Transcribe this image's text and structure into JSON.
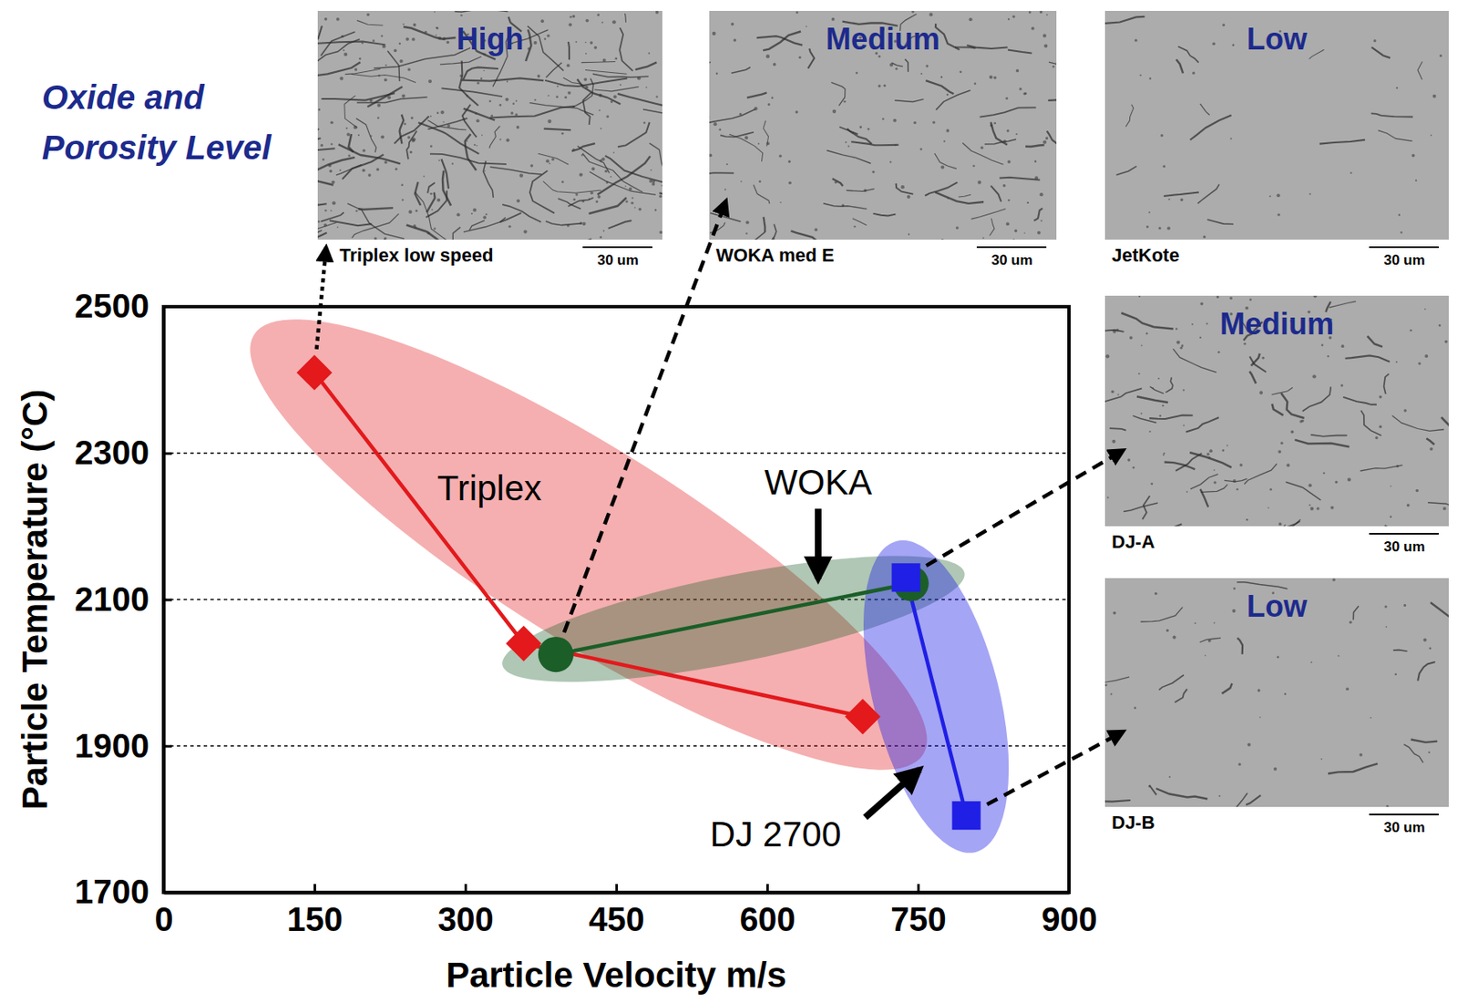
{
  "chart_data": {
    "type": "line",
    "title": "Oxide and Porosity Level",
    "x_label": "Particle Velocity m/s",
    "y_label": "Particle Temperature (°C)",
    "xlim": [
      0,
      900
    ],
    "xticks": [
      0,
      150,
      300,
      450,
      600,
      750,
      900
    ],
    "ylim": [
      1700,
      2500
    ],
    "yticks": [
      1700,
      1900,
      2100,
      2300,
      2500
    ],
    "grid": true,
    "series": [
      {
        "name": "Triplex",
        "color": "#e3191c",
        "marker": "diamond",
        "x": [
          150,
          358,
          695
        ],
        "values": [
          2410,
          2040,
          1940
        ]
      },
      {
        "name": "WOKA",
        "color": "#1b5e28",
        "marker": "circle",
        "x": [
          390,
          743
        ],
        "values": [
          2025,
          2122
        ]
      },
      {
        "name": "DJ 2700",
        "color": "#1f1fe6",
        "marker": "square",
        "x": [
          738,
          798
        ],
        "values": [
          2130,
          1805
        ]
      }
    ],
    "panels": [
      {
        "level": "High",
        "caption": "Triplex low speed",
        "scale_bar": "30 um"
      },
      {
        "level": "Medium",
        "caption": "WOKA med E",
        "scale_bar": "30 um"
      },
      {
        "level": "Low",
        "caption": "JetKote",
        "scale_bar": "30 um"
      },
      {
        "level": "Medium",
        "caption": "DJ-A",
        "scale_bar": "30 um"
      },
      {
        "level": "Low",
        "caption": "DJ-B",
        "scale_bar": "30 um"
      }
    ]
  }
}
